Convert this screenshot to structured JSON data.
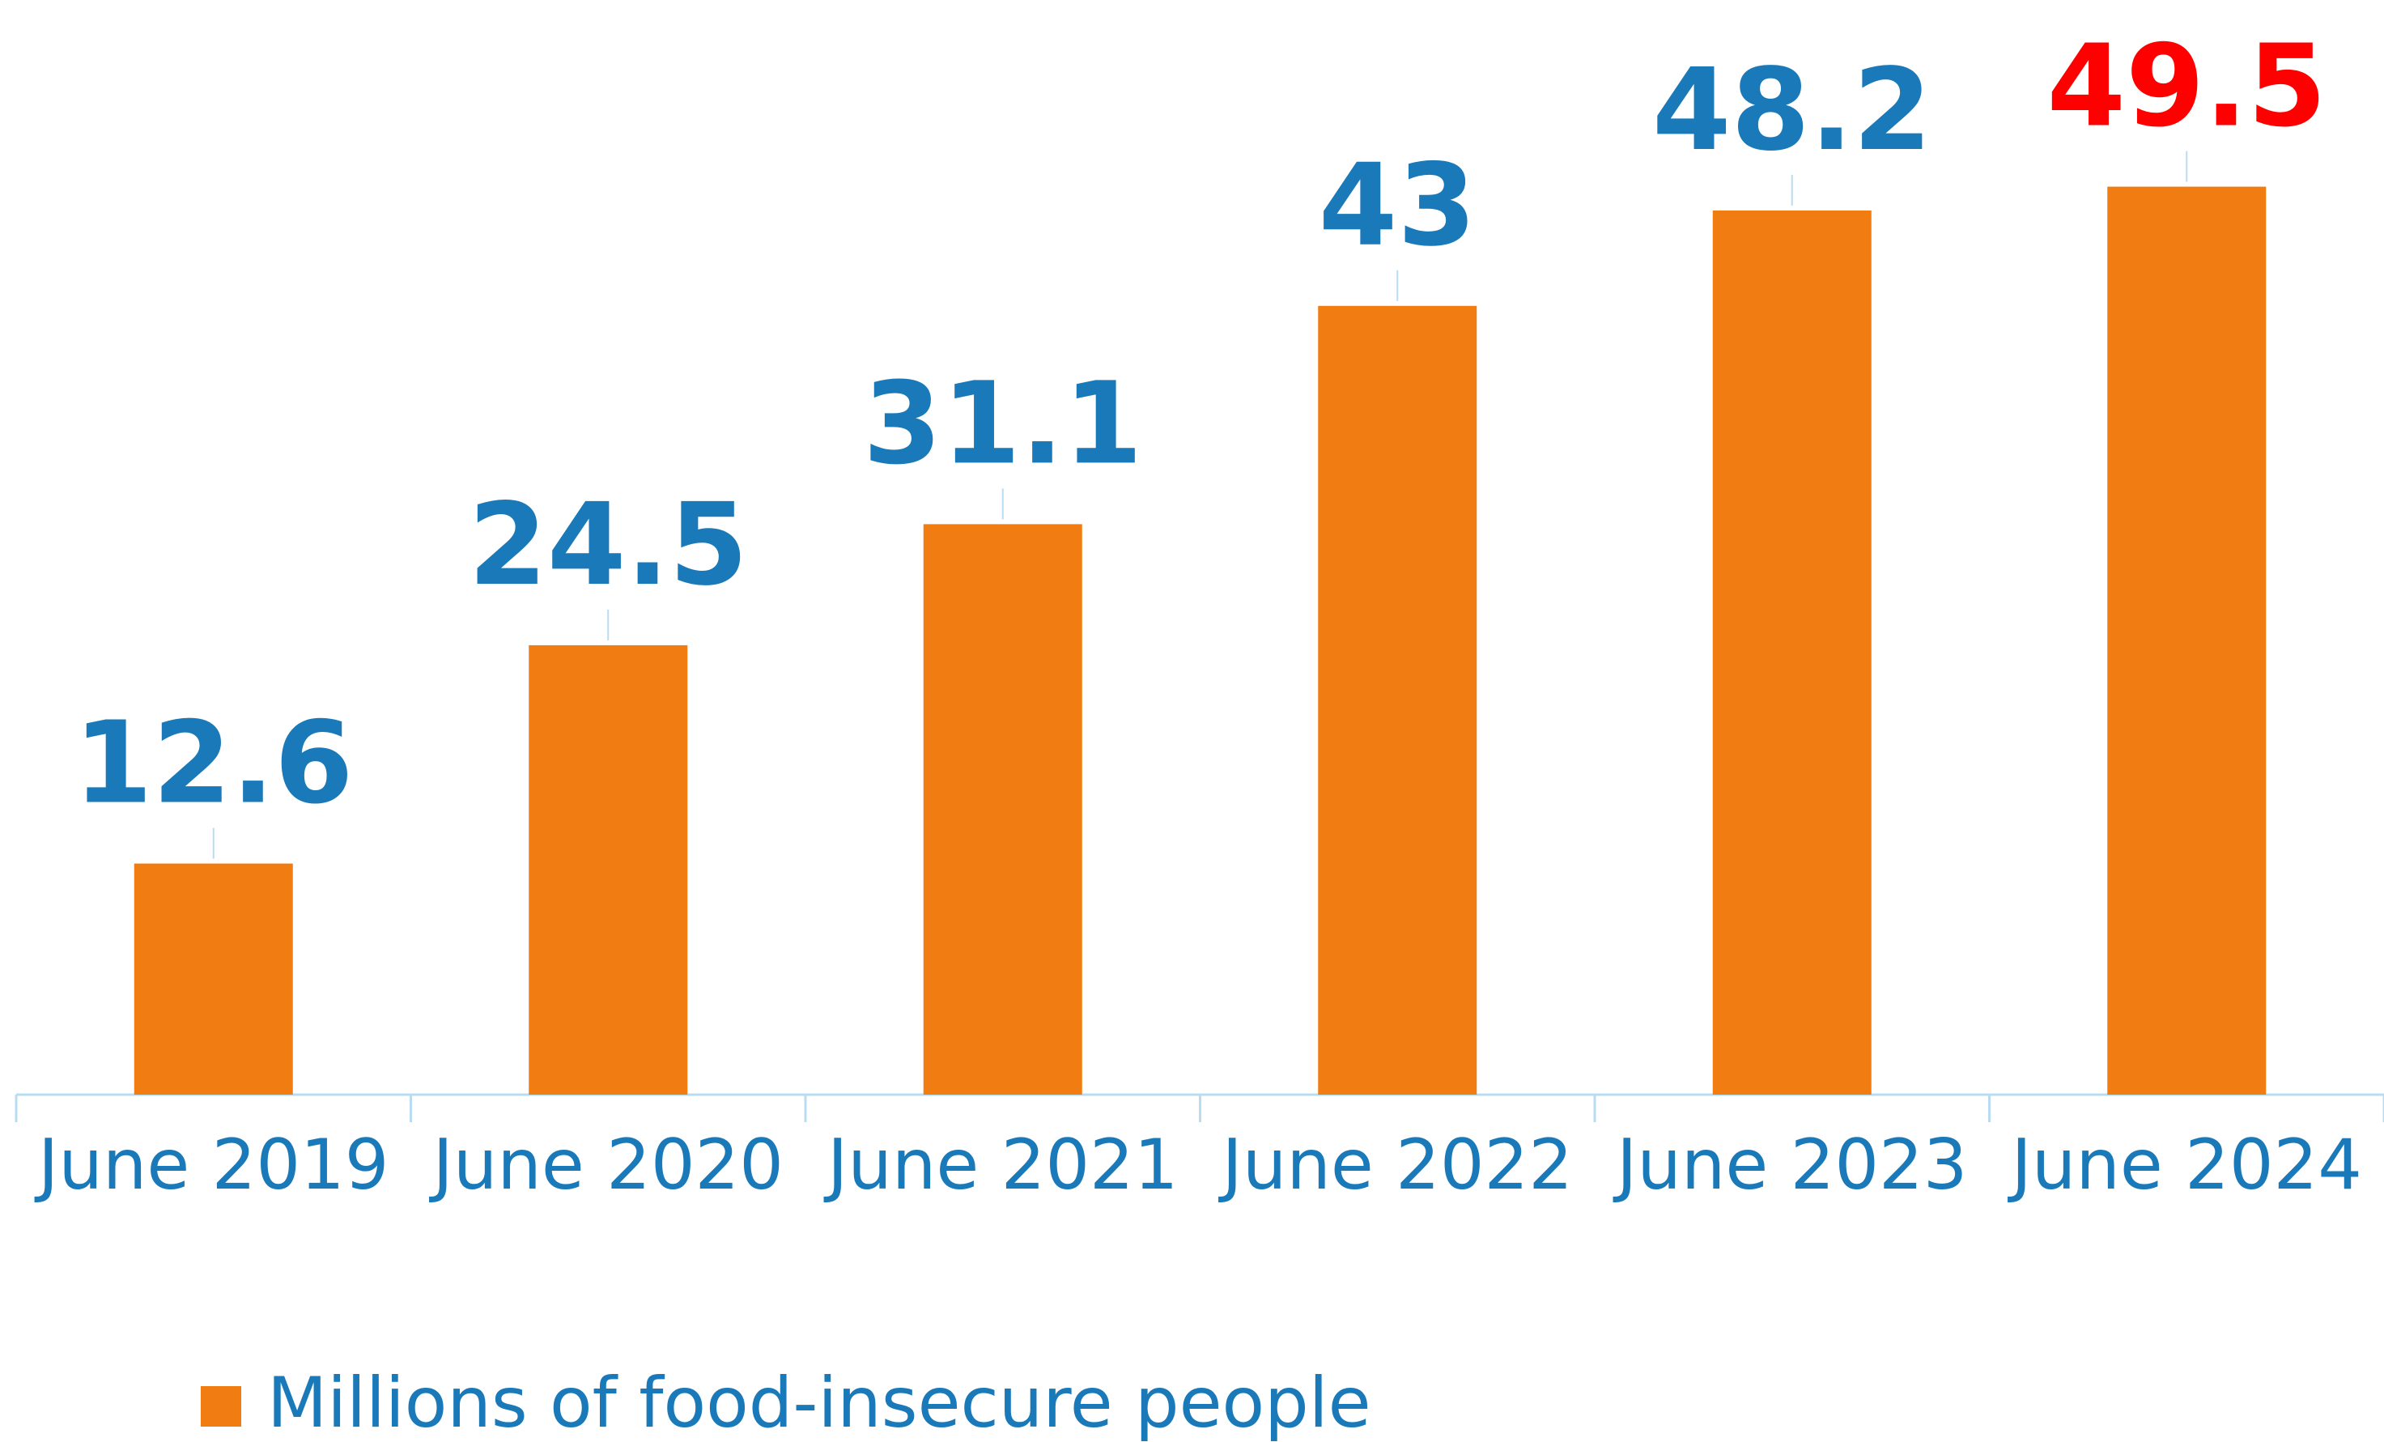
{
  "chart_data": {
    "type": "bar",
    "categories": [
      "June 2019",
      "June 2020",
      "June 2021",
      "June 2022",
      "June 2023",
      "June 2024"
    ],
    "series": [
      {
        "name": "Millions of food-insecure people",
        "values": [
          12.6,
          24.5,
          31.1,
          43,
          48.2,
          49.5
        ],
        "data_labels": [
          "12.6",
          "24.5",
          "31.1",
          "43",
          "48.2",
          "49.5"
        ]
      }
    ],
    "title": "",
    "xlabel": "",
    "ylabel": "",
    "ylim": [
      0,
      52
    ],
    "grid": false,
    "legend": "bottom-left",
    "highlight_index": 5
  },
  "colors": {
    "bar": "#f07c12",
    "label": "#1a79b9",
    "highlight_label": "#ff0000",
    "axis": "#b9dcf3",
    "tick_text": "#1a79b9"
  }
}
